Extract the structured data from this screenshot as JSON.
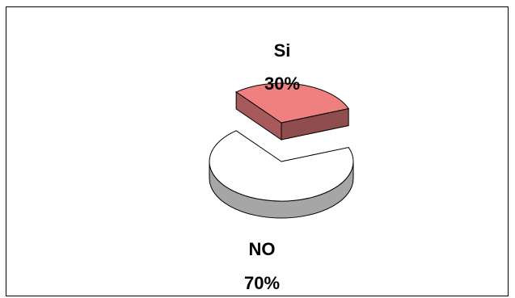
{
  "chart_data": {
    "type": "pie",
    "style": "3d",
    "title": "",
    "categories": [
      "Si",
      "NO"
    ],
    "values": [
      30,
      70
    ],
    "value_labels": [
      "30%",
      "70%"
    ],
    "colors": {
      "Si": "#f08080",
      "NO": "#ffffff"
    },
    "exploded": "Si",
    "legend": "none"
  }
}
